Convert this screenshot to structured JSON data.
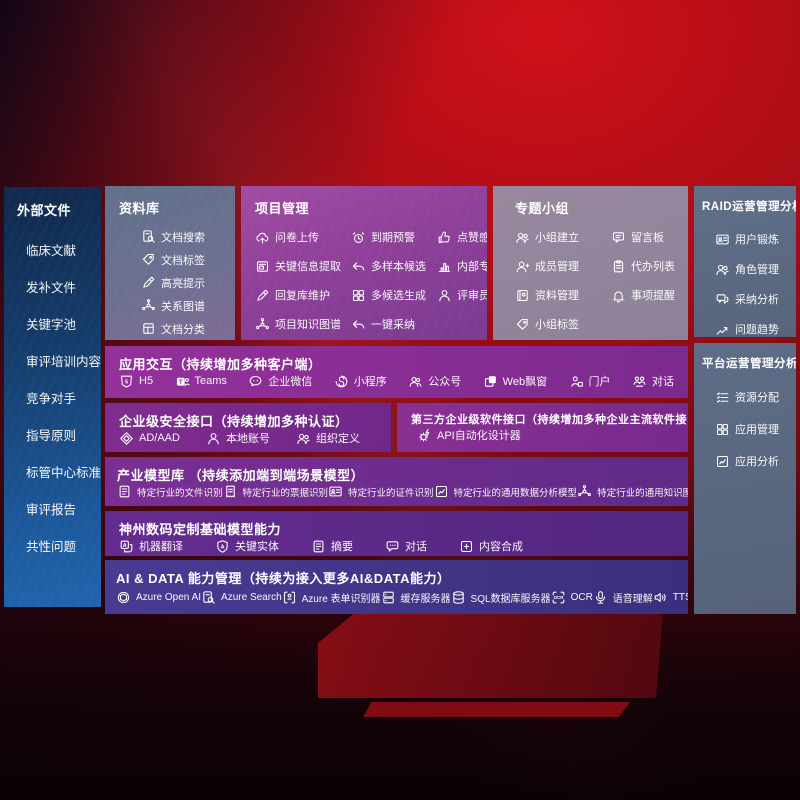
{
  "colors": {
    "background_red": "#b30f18",
    "sidebar_blue": "#1d5a9e",
    "panel_slate": "#5f6e88",
    "panel_magenta": "#8f4099",
    "panel_mauve": "#8d8298",
    "band_purple": "#7c2b8e",
    "band_indigo": "#43388e",
    "text": "#ffffff"
  },
  "left_sidebar": {
    "title": "外部文件",
    "items": [
      "临床文献",
      "发补文件",
      "关键字池",
      "审评培训内容",
      "竞争对手",
      "指导原则",
      "标管中心标准",
      "审评报告",
      "共性问题"
    ]
  },
  "library_panel": {
    "title": "资料库",
    "items": [
      {
        "icon": "doc-search",
        "label": "文档搜索"
      },
      {
        "icon": "tag",
        "label": "文档标签"
      },
      {
        "icon": "pen",
        "label": "高亮提示"
      },
      {
        "icon": "network",
        "label": "关系图谱"
      },
      {
        "icon": "doc-classify",
        "label": "文档分类"
      }
    ]
  },
  "project_panel": {
    "title": "项目管理",
    "items": [
      {
        "icon": "cloud-up",
        "label": "问卷上传"
      },
      {
        "icon": "alarm",
        "label": "到期预警"
      },
      {
        "icon": "thumb",
        "label": "点赞感谢"
      },
      {
        "icon": "doc-extract",
        "label": "关键信息提取"
      },
      {
        "icon": "arrow-back",
        "label": "多样本候选"
      },
      {
        "icon": "rank",
        "label": "内部专家排名"
      },
      {
        "icon": "pen",
        "label": "回复库维护"
      },
      {
        "icon": "grid4",
        "label": "多候选生成"
      },
      {
        "icon": "person",
        "label": "评审员画像"
      },
      {
        "icon": "network",
        "label": "项目知识图谱"
      },
      {
        "icon": "arrow-back",
        "label": "一键采纳"
      }
    ]
  },
  "group_panel": {
    "title": "专题小组",
    "items": [
      {
        "icon": "people",
        "label": "小组建立"
      },
      {
        "icon": "bbs",
        "label": "留言板"
      },
      {
        "icon": "person-plus",
        "label": "成员管理"
      },
      {
        "icon": "clipboard",
        "label": "代办列表"
      },
      {
        "icon": "album",
        "label": "资料管理"
      },
      {
        "icon": "bell",
        "label": "事项提醒"
      },
      {
        "icon": "tag",
        "label": "小组标签"
      }
    ]
  },
  "raid_panel": {
    "title": "RAID运营管理分析",
    "items": [
      {
        "icon": "id-card",
        "label": "用户锻炼"
      },
      {
        "icon": "people",
        "label": "角色管理"
      },
      {
        "icon": "chat-qa",
        "label": "采纳分析"
      },
      {
        "icon": "trend",
        "label": "问题趋势"
      }
    ]
  },
  "platform_panel": {
    "title": "平台运营管理分析",
    "items": [
      {
        "icon": "list-check",
        "label": "资源分配"
      },
      {
        "icon": "grid4",
        "label": "应用管理"
      },
      {
        "icon": "app-chart",
        "label": "应用分析"
      }
    ]
  },
  "bands": {
    "interaction": {
      "title": "应用交互（持续增加多种客户端）",
      "items": [
        {
          "icon": "h5",
          "label": "H5"
        },
        {
          "icon": "teams",
          "label": "Teams"
        },
        {
          "icon": "wecom",
          "label": "企业微信"
        },
        {
          "icon": "miniapp",
          "label": "小程序"
        },
        {
          "icon": "pub",
          "label": "公众号"
        },
        {
          "icon": "webwin",
          "label": "Web飘窗"
        },
        {
          "icon": "portal",
          "label": "门户"
        },
        {
          "icon": "dialog-people",
          "label": "对话"
        }
      ]
    },
    "security": {
      "title": "企业级安全接口（持续增加多种认证）",
      "items": [
        {
          "icon": "ad",
          "label": "AD/AAD"
        },
        {
          "icon": "person",
          "label": "本地账号"
        },
        {
          "icon": "people",
          "label": "组织定义"
        }
      ]
    },
    "third_party": {
      "title": "第三方企业级软件接口（持续增加多种企业主流软件接口）",
      "items": [
        {
          "icon": "api",
          "label": "API自动化设计器"
        }
      ]
    },
    "industry_models": {
      "title": "产业模型库 （持续添加端到端场景模型）",
      "items": [
        {
          "icon": "ind-doc",
          "label": "特定行业的文件识别"
        },
        {
          "icon": "ind-bill",
          "label": "特定行业的票据识别"
        },
        {
          "icon": "id-card",
          "label": "特定行业的证件识别"
        },
        {
          "icon": "app-chart",
          "label": "特定行业的通用数据分析模型"
        },
        {
          "icon": "network",
          "label": "特定行业的通用知识图谱模型"
        }
      ]
    },
    "base_models": {
      "title": "神州数码定制基础模型能力",
      "items": [
        {
          "icon": "translate",
          "label": "机器翻译"
        },
        {
          "icon": "entity-shield",
          "label": "关键实体"
        },
        {
          "icon": "ind-doc",
          "label": "摘要"
        },
        {
          "icon": "chat-dots",
          "label": "对话"
        },
        {
          "icon": "compose",
          "label": "内容合成"
        }
      ]
    },
    "ai_data": {
      "title": "AI & DATA 能力管理（持续为接入更多AI&DATA能力）",
      "items": [
        {
          "icon": "openai",
          "label": "Azure Open AI"
        },
        {
          "icon": "doc-search",
          "label": "Azure Search"
        },
        {
          "icon": "azure-form",
          "label": "Azure 表单识别器"
        },
        {
          "icon": "cache-server",
          "label": "缓存服务器"
        },
        {
          "icon": "sql-db",
          "label": "SQL数据库服务器"
        },
        {
          "icon": "ocr",
          "label": "OCR"
        },
        {
          "icon": "mic",
          "label": "语音理解"
        },
        {
          "icon": "speaker",
          "label": "TTS"
        }
      ]
    }
  }
}
